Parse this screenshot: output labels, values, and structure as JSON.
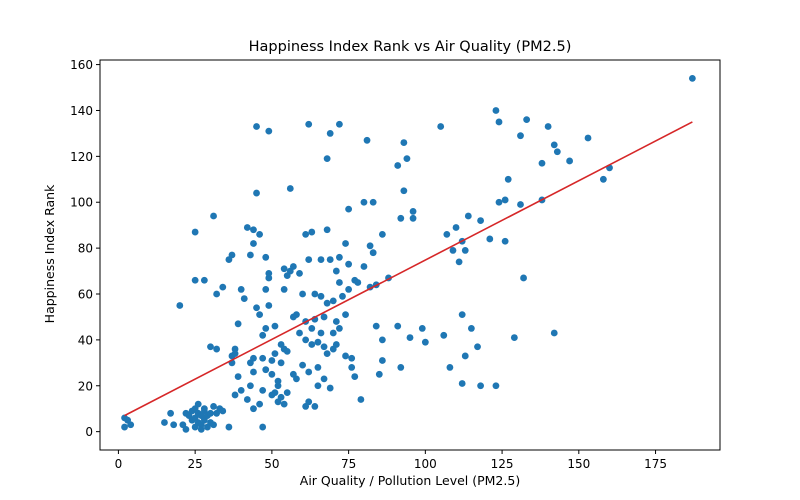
{
  "chart_data": {
    "type": "scatter",
    "title": "Happiness Index Rank vs Air Quality (PM2.5)",
    "xlabel": "Air Quality / Pollution Level (PM2.5)",
    "ylabel": "Happiness Index Rank",
    "xlim": [
      -6,
      196
    ],
    "ylim": [
      -8,
      162
    ],
    "xticks": [
      0,
      25,
      50,
      75,
      100,
      125,
      150,
      175
    ],
    "yticks": [
      0,
      20,
      40,
      60,
      80,
      100,
      120,
      140,
      160
    ],
    "grid": false,
    "legend": "none",
    "point_color": "#1f77b4",
    "trend_color": "#d62728",
    "trendline": {
      "x": [
        2,
        187
      ],
      "y": [
        7,
        135
      ]
    },
    "points": [
      [
        2,
        6
      ],
      [
        2,
        2
      ],
      [
        3,
        5
      ],
      [
        4,
        3
      ],
      [
        15,
        4
      ],
      [
        17,
        8
      ],
      [
        18,
        3
      ],
      [
        20,
        55
      ],
      [
        21,
        3
      ],
      [
        22,
        1
      ],
      [
        22,
        8
      ],
      [
        23,
        7
      ],
      [
        24,
        5
      ],
      [
        24,
        9
      ],
      [
        25,
        2
      ],
      [
        25,
        10
      ],
      [
        25,
        6
      ],
      [
        26,
        8
      ],
      [
        26,
        4
      ],
      [
        26,
        12
      ],
      [
        27,
        7
      ],
      [
        27,
        3
      ],
      [
        27,
        1
      ],
      [
        28,
        5
      ],
      [
        28,
        10
      ],
      [
        28,
        9
      ],
      [
        29,
        7
      ],
      [
        29,
        2
      ],
      [
        30,
        8
      ],
      [
        30,
        4
      ],
      [
        31,
        11
      ],
      [
        31,
        3
      ],
      [
        32,
        8
      ],
      [
        33,
        10
      ],
      [
        34,
        9
      ],
      [
        36,
        2
      ],
      [
        25,
        66
      ],
      [
        25,
        87
      ],
      [
        28,
        66
      ],
      [
        30,
        37
      ],
      [
        31,
        94
      ],
      [
        32,
        60
      ],
      [
        32,
        36
      ],
      [
        34,
        63
      ],
      [
        36,
        75
      ],
      [
        37,
        77
      ],
      [
        37,
        30
      ],
      [
        37,
        33
      ],
      [
        38,
        36
      ],
      [
        38,
        34
      ],
      [
        38,
        16
      ],
      [
        39,
        47
      ],
      [
        39,
        24
      ],
      [
        40,
        18
      ],
      [
        40,
        62
      ],
      [
        41,
        58
      ],
      [
        42,
        89
      ],
      [
        42,
        14
      ],
      [
        43,
        20
      ],
      [
        43,
        30
      ],
      [
        43,
        77
      ],
      [
        44,
        26
      ],
      [
        44,
        32
      ],
      [
        44,
        82
      ],
      [
        44,
        10
      ],
      [
        44,
        88
      ],
      [
        45,
        133
      ],
      [
        45,
        104
      ],
      [
        45,
        54
      ],
      [
        46,
        86
      ],
      [
        46,
        51
      ],
      [
        46,
        12
      ],
      [
        47,
        42
      ],
      [
        47,
        2
      ],
      [
        47,
        32
      ],
      [
        47,
        18
      ],
      [
        48,
        27
      ],
      [
        48,
        62
      ],
      [
        48,
        76
      ],
      [
        48,
        45
      ],
      [
        49,
        67
      ],
      [
        49,
        55
      ],
      [
        49,
        69
      ],
      [
        49,
        131
      ],
      [
        50,
        31
      ],
      [
        50,
        16
      ],
      [
        50,
        25
      ],
      [
        51,
        34
      ],
      [
        51,
        17
      ],
      [
        51,
        46
      ],
      [
        52,
        20
      ],
      [
        52,
        13
      ],
      [
        52,
        22
      ],
      [
        53,
        30
      ],
      [
        53,
        15
      ],
      [
        53,
        38
      ],
      [
        54,
        71
      ],
      [
        54,
        62
      ],
      [
        54,
        12
      ],
      [
        54,
        36
      ],
      [
        55,
        35
      ],
      [
        55,
        68
      ],
      [
        55,
        17
      ],
      [
        56,
        106
      ],
      [
        56,
        70
      ],
      [
        57,
        72
      ],
      [
        57,
        50
      ],
      [
        57,
        25
      ],
      [
        58,
        23
      ],
      [
        58,
        51
      ],
      [
        59,
        43
      ],
      [
        59,
        69
      ],
      [
        60,
        60
      ],
      [
        60,
        29
      ],
      [
        61,
        40
      ],
      [
        61,
        86
      ],
      [
        61,
        11
      ],
      [
        61,
        48
      ],
      [
        62,
        134
      ],
      [
        62,
        75
      ],
      [
        62,
        26
      ],
      [
        62,
        13
      ],
      [
        63,
        87
      ],
      [
        63,
        38
      ],
      [
        63,
        45
      ],
      [
        64,
        60
      ],
      [
        64,
        11
      ],
      [
        64,
        49
      ],
      [
        65,
        39
      ],
      [
        65,
        28
      ],
      [
        65,
        20
      ],
      [
        66,
        59
      ],
      [
        66,
        75
      ],
      [
        66,
        43
      ],
      [
        67,
        37
      ],
      [
        67,
        23
      ],
      [
        67,
        50
      ],
      [
        68,
        119
      ],
      [
        68,
        34
      ],
      [
        68,
        56
      ],
      [
        68,
        88
      ],
      [
        69,
        130
      ],
      [
        69,
        75
      ],
      [
        69,
        19
      ],
      [
        70,
        57
      ],
      [
        70,
        43
      ],
      [
        70,
        36
      ],
      [
        71,
        48
      ],
      [
        71,
        70
      ],
      [
        71,
        38
      ],
      [
        72,
        134
      ],
      [
        72,
        45
      ],
      [
        72,
        65
      ],
      [
        72,
        76
      ],
      [
        73,
        59
      ],
      [
        74,
        82
      ],
      [
        74,
        33
      ],
      [
        74,
        51
      ],
      [
        75,
        97
      ],
      [
        75,
        62
      ],
      [
        75,
        73
      ],
      [
        76,
        32
      ],
      [
        76,
        28
      ],
      [
        77,
        24
      ],
      [
        77,
        66
      ],
      [
        78,
        65
      ],
      [
        79,
        14
      ],
      [
        80,
        72
      ],
      [
        80,
        100
      ],
      [
        81,
        127
      ],
      [
        82,
        81
      ],
      [
        82,
        63
      ],
      [
        83,
        78
      ],
      [
        83,
        100
      ],
      [
        84,
        46
      ],
      [
        84,
        64
      ],
      [
        85,
        25
      ],
      [
        86,
        86
      ],
      [
        86,
        31
      ],
      [
        86,
        40
      ],
      [
        88,
        67
      ],
      [
        91,
        116
      ],
      [
        91,
        46
      ],
      [
        92,
        93
      ],
      [
        92,
        28
      ],
      [
        93,
        126
      ],
      [
        93,
        105
      ],
      [
        94,
        119
      ],
      [
        95,
        41
      ],
      [
        96,
        93
      ],
      [
        96,
        96
      ],
      [
        99,
        45
      ],
      [
        100,
        39
      ],
      [
        105,
        133
      ],
      [
        106,
        42
      ],
      [
        107,
        86
      ],
      [
        108,
        28
      ],
      [
        109,
        79
      ],
      [
        110,
        89
      ],
      [
        111,
        74
      ],
      [
        112,
        21
      ],
      [
        112,
        51
      ],
      [
        112,
        83
      ],
      [
        113,
        33
      ],
      [
        113,
        79
      ],
      [
        114,
        94
      ],
      [
        115,
        45
      ],
      [
        117,
        37
      ],
      [
        118,
        20
      ],
      [
        118,
        92
      ],
      [
        121,
        84
      ],
      [
        123,
        20
      ],
      [
        123,
        140
      ],
      [
        124,
        100
      ],
      [
        124,
        135
      ],
      [
        126,
        83
      ],
      [
        126,
        101
      ],
      [
        127,
        110
      ],
      [
        129,
        41
      ],
      [
        131,
        129
      ],
      [
        131,
        99
      ],
      [
        132,
        67
      ],
      [
        133,
        136
      ],
      [
        138,
        101
      ],
      [
        138,
        117
      ],
      [
        140,
        133
      ],
      [
        142,
        43
      ],
      [
        142,
        125
      ],
      [
        143,
        122
      ],
      [
        147,
        118
      ],
      [
        153,
        128
      ],
      [
        158,
        110
      ],
      [
        160,
        115
      ],
      [
        187,
        154
      ]
    ]
  }
}
